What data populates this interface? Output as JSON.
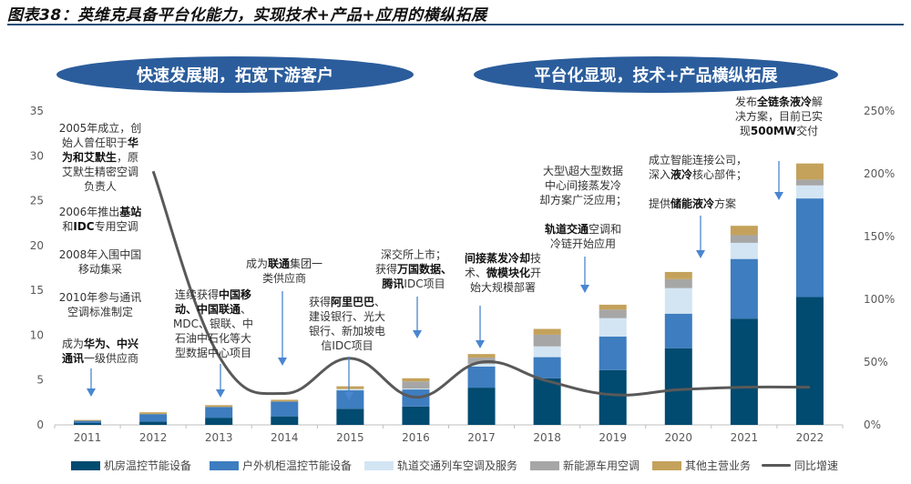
{
  "title": "图表38：英维克具备平台化能力，实现技术+产品+应用的横纵拓展",
  "phases": [
    {
      "label": "快速发展期，拓宽下游客户"
    },
    {
      "label": "平台化显现，技术+产品横纵拓展"
    }
  ],
  "colors": {
    "机房温控节能设备": "#014a70",
    "户外机柜温控节能设备": "#3e7dbf",
    "轨道交通列车空调及服务": "#d3e5f3",
    "新能源车用空调": "#a6a6a6",
    "其他主营业务": "#c4a25c",
    "同比增速": "#595959",
    "phase_pill": "#2b5d9c",
    "arrow": "#4a86d0"
  },
  "chart_data": {
    "type": "bar",
    "stacked": true,
    "categories": [
      "2011",
      "2012",
      "2013",
      "2014",
      "2015",
      "2016",
      "2017",
      "2018",
      "2019",
      "2020",
      "2021",
      "2022"
    ],
    "ylim": [
      0,
      35
    ],
    "yticks": [
      "0",
      "5",
      "10",
      "15",
      "20",
      "25",
      "30",
      "35"
    ],
    "y2lim": [
      0,
      250
    ],
    "y2ticks": [
      "0%",
      "50%",
      "100%",
      "150%",
      "200%",
      "250%"
    ],
    "grid": false,
    "legend_position": "bottom",
    "series": [
      {
        "name": "机房温控节能设备",
        "values": [
          0.2,
          0.35,
          0.8,
          0.95,
          1.8,
          2.05,
          4.15,
          5.2,
          6.1,
          8.55,
          11.85,
          14.25
        ]
      },
      {
        "name": "户外机柜温控节能设备",
        "values": [
          0.25,
          0.85,
          1.2,
          1.65,
          2.05,
          1.9,
          2.35,
          2.35,
          3.75,
          3.85,
          6.65,
          11.0
        ]
      },
      {
        "name": "轨道交通列车空调及服务",
        "values": [
          0,
          0,
          0,
          0,
          0.15,
          0.1,
          0.3,
          1.2,
          2.05,
          2.85,
          1.8,
          1.45
        ]
      },
      {
        "name": "新能源车用空调",
        "values": [
          0,
          0,
          0,
          0,
          0,
          0.8,
          0.7,
          1.3,
          0.95,
          1.0,
          0.85,
          0.65
        ]
      },
      {
        "name": "其他主营业务",
        "values": [
          0.1,
          0.2,
          0.2,
          0.2,
          0.3,
          0.35,
          0.4,
          0.65,
          0.55,
          0.8,
          1.05,
          1.8
        ]
      }
    ],
    "line_series": {
      "name": "同比增速",
      "axis": "right",
      "unit": "%",
      "values": [
        null,
        202,
        55,
        25,
        53,
        22,
        50,
        35,
        24,
        28,
        30,
        30
      ]
    }
  },
  "annotations": [
    {
      "lines": [
        [
          {
            "t": "2005年成立，创"
          }
        ],
        [
          {
            "t": "始人曾任职于"
          },
          {
            "t": "华",
            "b": true
          }
        ],
        [
          {
            "t": "为和艾默生",
            "b": true
          },
          {
            "t": "，原"
          }
        ],
        [
          {
            "t": "艾默生精密空调"
          }
        ],
        [
          {
            "t": "负责人"
          }
        ]
      ]
    },
    {
      "lines": [
        [
          {
            "t": "2006年推出"
          },
          {
            "t": "基站",
            "b": true
          }
        ],
        [
          {
            "t": "和"
          },
          {
            "t": "IDC",
            "b": true
          },
          {
            "t": "专用空调"
          }
        ]
      ]
    },
    {
      "lines": [
        [
          {
            "t": "2008年入围中国"
          }
        ],
        [
          {
            "t": "移动集采"
          }
        ]
      ]
    },
    {
      "lines": [
        [
          {
            "t": "2010年参与通讯"
          }
        ],
        [
          {
            "t": "空调标准制定"
          }
        ]
      ]
    },
    {
      "lines": [
        [
          {
            "t": "成为"
          },
          {
            "t": "华为、中兴",
            "b": true
          }
        ],
        [
          {
            "t": "通讯",
            "b": true
          },
          {
            "t": "一级供应商"
          }
        ]
      ]
    },
    {
      "lines": [
        [
          {
            "t": "连续获得"
          },
          {
            "t": "中国移",
            "b": true
          }
        ],
        [
          {
            "t": "动、中国联通",
            "b": true
          },
          {
            "t": "、"
          }
        ],
        [
          {
            "t": "MDC、银联、中"
          }
        ],
        [
          {
            "t": "石油中石化等大"
          }
        ],
        [
          {
            "t": "型数据中心项目"
          }
        ]
      ]
    },
    {
      "lines": [
        [
          {
            "t": "成为"
          },
          {
            "t": "联通",
            "b": true
          },
          {
            "t": "集团一"
          }
        ],
        [
          {
            "t": "类供应商"
          }
        ]
      ]
    },
    {
      "lines": [
        [
          {
            "t": "获得"
          },
          {
            "t": "阿里巴巴",
            "b": true
          },
          {
            "t": "、"
          }
        ],
        [
          {
            "t": "建设银行、光大"
          }
        ],
        [
          {
            "t": "银行、新加坡电"
          }
        ],
        [
          {
            "t": "信IDC项目"
          }
        ]
      ]
    },
    {
      "lines": [
        [
          {
            "t": "深交所上市；"
          }
        ],
        [
          {
            "t": "获得"
          },
          {
            "t": "万国数据、",
            "b": true
          }
        ],
        [
          {
            "t": "腾讯",
            "b": true
          },
          {
            "t": "IDC项目"
          }
        ]
      ]
    },
    {
      "lines": [
        [
          {
            "t": "间接蒸发冷却",
            "b": true
          },
          {
            "t": "技"
          }
        ],
        [
          {
            "t": "术、"
          },
          {
            "t": "微模块化",
            "b": true
          },
          {
            "t": "开"
          }
        ],
        [
          {
            "t": "始大规模部署"
          }
        ]
      ]
    },
    {
      "lines": [
        [
          {
            "t": "大型\\超大型数据"
          }
        ],
        [
          {
            "t": "中心间接蒸发冷"
          }
        ],
        [
          {
            "t": "却方案广泛应用；"
          }
        ]
      ]
    },
    {
      "lines": [
        [
          {
            "t": "轨道交通",
            "b": true
          },
          {
            "t": "空调和"
          }
        ],
        [
          {
            "t": "冷链开始应用"
          }
        ]
      ]
    },
    {
      "lines": [
        [
          {
            "t": "成立智能连接公司，"
          }
        ],
        [
          {
            "t": "深入"
          },
          {
            "t": "液冷",
            "b": true
          },
          {
            "t": "核心部件；"
          }
        ]
      ]
    },
    {
      "lines": [
        [
          {
            "t": "提供"
          },
          {
            "t": "储能液冷",
            "b": true
          },
          {
            "t": "方案"
          }
        ]
      ]
    },
    {
      "lines": [
        [
          {
            "t": "发布"
          },
          {
            "t": "全链条液冷",
            "b": true
          },
          {
            "t": "解"
          }
        ],
        [
          {
            "t": "决方案，目前已实"
          }
        ],
        [
          {
            "t": "现"
          },
          {
            "t": "500MW",
            "b": true
          },
          {
            "t": "交付"
          }
        ]
      ]
    }
  ]
}
